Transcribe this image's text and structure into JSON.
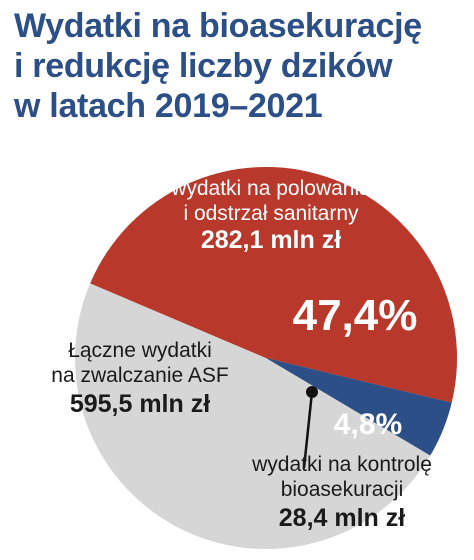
{
  "title": [
    "Wydatki na bioasekurację",
    "i redukcję liczby dzików",
    "w latach 2019–2021"
  ],
  "colors": {
    "hunting": "#b8392b",
    "biosecurity": "#2b4f86",
    "total": "#d6d6d6",
    "title": "#2b4f86"
  },
  "chart_data": {
    "type": "pie",
    "title": "Wydatki na bioasekurację i redukcję liczby dzików w latach 2019–2021",
    "total": {
      "label": [
        "Łączne wydatki",
        "na zwalczanie ASF"
      ],
      "value_text": "595,5 mln zł",
      "value": 595.5,
      "unit": "mln zł"
    },
    "slices": [
      {
        "label": [
          "wydatki na polowania",
          "i odstrzał sanitarny"
        ],
        "value": 282.1,
        "value_text": "282,1 mln zł",
        "percent": 47.4,
        "percent_text": "47,4%",
        "color": "#b8392b"
      },
      {
        "label": [
          "wydatki na kontrolę",
          "bioasekuracji"
        ],
        "value": 28.4,
        "value_text": "28,4 mln zł",
        "percent": 4.8,
        "percent_text": "4,8%",
        "color": "#2b4f86"
      }
    ]
  }
}
